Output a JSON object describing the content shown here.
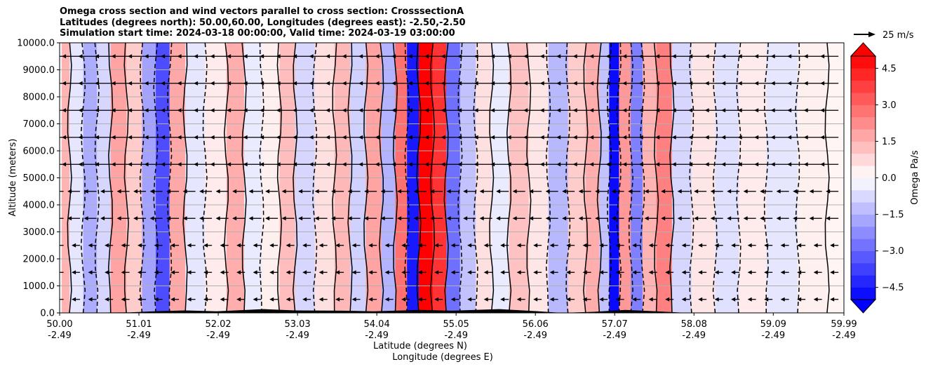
{
  "chart_data": {
    "type": "heatmap",
    "title_lines": [
      "Omega cross section and wind vectors parallel to cross section: CrosssectionA",
      "Latitudes (degrees north): 50.00,60.00, Longitudes (degrees east): -2.50,-2.50",
      "Simulation start time: 2024-03-18 00:00:00, Valid time: 2024-03-19 03:00:00"
    ],
    "ylabel": "Altitude (meters)",
    "xlabel_lat": "Latitude (degrees N)",
    "xlabel_lon": "Longitude (degrees E)",
    "ylim": [
      0,
      10000
    ],
    "y_ticks": [
      "0.0",
      "1000.0",
      "2000.0",
      "3000.0",
      "4000.0",
      "5000.0",
      "6000.0",
      "7000.0",
      "8000.0",
      "9000.0",
      "10000.0"
    ],
    "xlim": [
      50.0,
      59.99
    ],
    "x_ticks_lat": [
      "50.00",
      "51.01",
      "52.02",
      "53.03",
      "54.04",
      "55.05",
      "56.06",
      "57.07",
      "58.08",
      "59.09",
      "59.99"
    ],
    "x_ticks_lon": [
      "-2.49",
      "-2.49",
      "-2.49",
      "-2.49",
      "-2.49",
      "-2.49",
      "-2.49",
      "-2.49",
      "-2.49",
      "-2.49",
      "-2.49"
    ],
    "x_tick_values": [
      50.0,
      51.01,
      52.02,
      53.03,
      54.04,
      55.05,
      56.06,
      57.07,
      58.08,
      59.09,
      59.99
    ],
    "grid": "horizontal",
    "colorbar": {
      "label": "Omega Pa/s",
      "range": [
        -5.0,
        5.0
      ],
      "levels": 20,
      "ticks": [
        "4.5",
        "3.0",
        "1.5",
        "0.0",
        "−1.5",
        "−3.0",
        "−4.5"
      ],
      "tick_values": [
        4.5,
        3.0,
        1.5,
        0.0,
        -1.5,
        -3.0,
        -4.5
      ],
      "extend": "both",
      "colormap": "bwr"
    },
    "quiver_key": {
      "label": "25 m/s",
      "value": 25
    },
    "omega_bands": [
      {
        "lat": 50.05,
        "omega": 1.5
      },
      {
        "lat": 50.2,
        "omega": -0.5
      },
      {
        "lat": 50.4,
        "omega": -1.6
      },
      {
        "lat": 50.55,
        "omega": -0.8
      },
      {
        "lat": 50.75,
        "omega": 1.8
      },
      {
        "lat": 50.95,
        "omega": 1.0
      },
      {
        "lat": 51.15,
        "omega": -1.8
      },
      {
        "lat": 51.3,
        "omega": -3.5
      },
      {
        "lat": 51.5,
        "omega": 1.7
      },
      {
        "lat": 51.7,
        "omega": -0.5
      },
      {
        "lat": 52.0,
        "omega": 0.4
      },
      {
        "lat": 52.25,
        "omega": 1.6
      },
      {
        "lat": 52.45,
        "omega": -0.4
      },
      {
        "lat": 52.7,
        "omega": 0.3
      },
      {
        "lat": 52.9,
        "omega": 1.3
      },
      {
        "lat": 53.1,
        "omega": -0.8
      },
      {
        "lat": 53.4,
        "omega": 0.6
      },
      {
        "lat": 53.6,
        "omega": 1.4
      },
      {
        "lat": 53.8,
        "omega": -0.9
      },
      {
        "lat": 54.0,
        "omega": 1.8
      },
      {
        "lat": 54.2,
        "omega": -1.5
      },
      {
        "lat": 54.35,
        "omega": 2.8
      },
      {
        "lat": 54.5,
        "omega": -4.5
      },
      {
        "lat": 54.65,
        "omega": 5.0
      },
      {
        "lat": 54.85,
        "omega": 4.0
      },
      {
        "lat": 55.0,
        "omega": -2.8
      },
      {
        "lat": 55.2,
        "omega": -1.2
      },
      {
        "lat": 55.4,
        "omega": 0.6
      },
      {
        "lat": 55.6,
        "omega": -0.4
      },
      {
        "lat": 55.85,
        "omega": 1.2
      },
      {
        "lat": 56.1,
        "omega": 0.5
      },
      {
        "lat": 56.35,
        "omega": -1.4
      },
      {
        "lat": 56.6,
        "omega": 1.0
      },
      {
        "lat": 56.8,
        "omega": 1.6
      },
      {
        "lat": 56.95,
        "omega": -1.2
      },
      {
        "lat": 57.05,
        "omega": -4.8
      },
      {
        "lat": 57.2,
        "omega": 2.0
      },
      {
        "lat": 57.35,
        "omega": -2.5
      },
      {
        "lat": 57.5,
        "omega": 1.5
      },
      {
        "lat": 57.7,
        "omega": 2.5
      },
      {
        "lat": 57.9,
        "omega": -0.8
      },
      {
        "lat": 58.2,
        "omega": 0.5
      },
      {
        "lat": 58.5,
        "omega": -0.6
      },
      {
        "lat": 58.8,
        "omega": 0.4
      },
      {
        "lat": 59.2,
        "omega": -0.5
      },
      {
        "lat": 59.6,
        "omega": 0.3
      },
      {
        "lat": 59.95,
        "omega": 0.2
      }
    ]
  }
}
